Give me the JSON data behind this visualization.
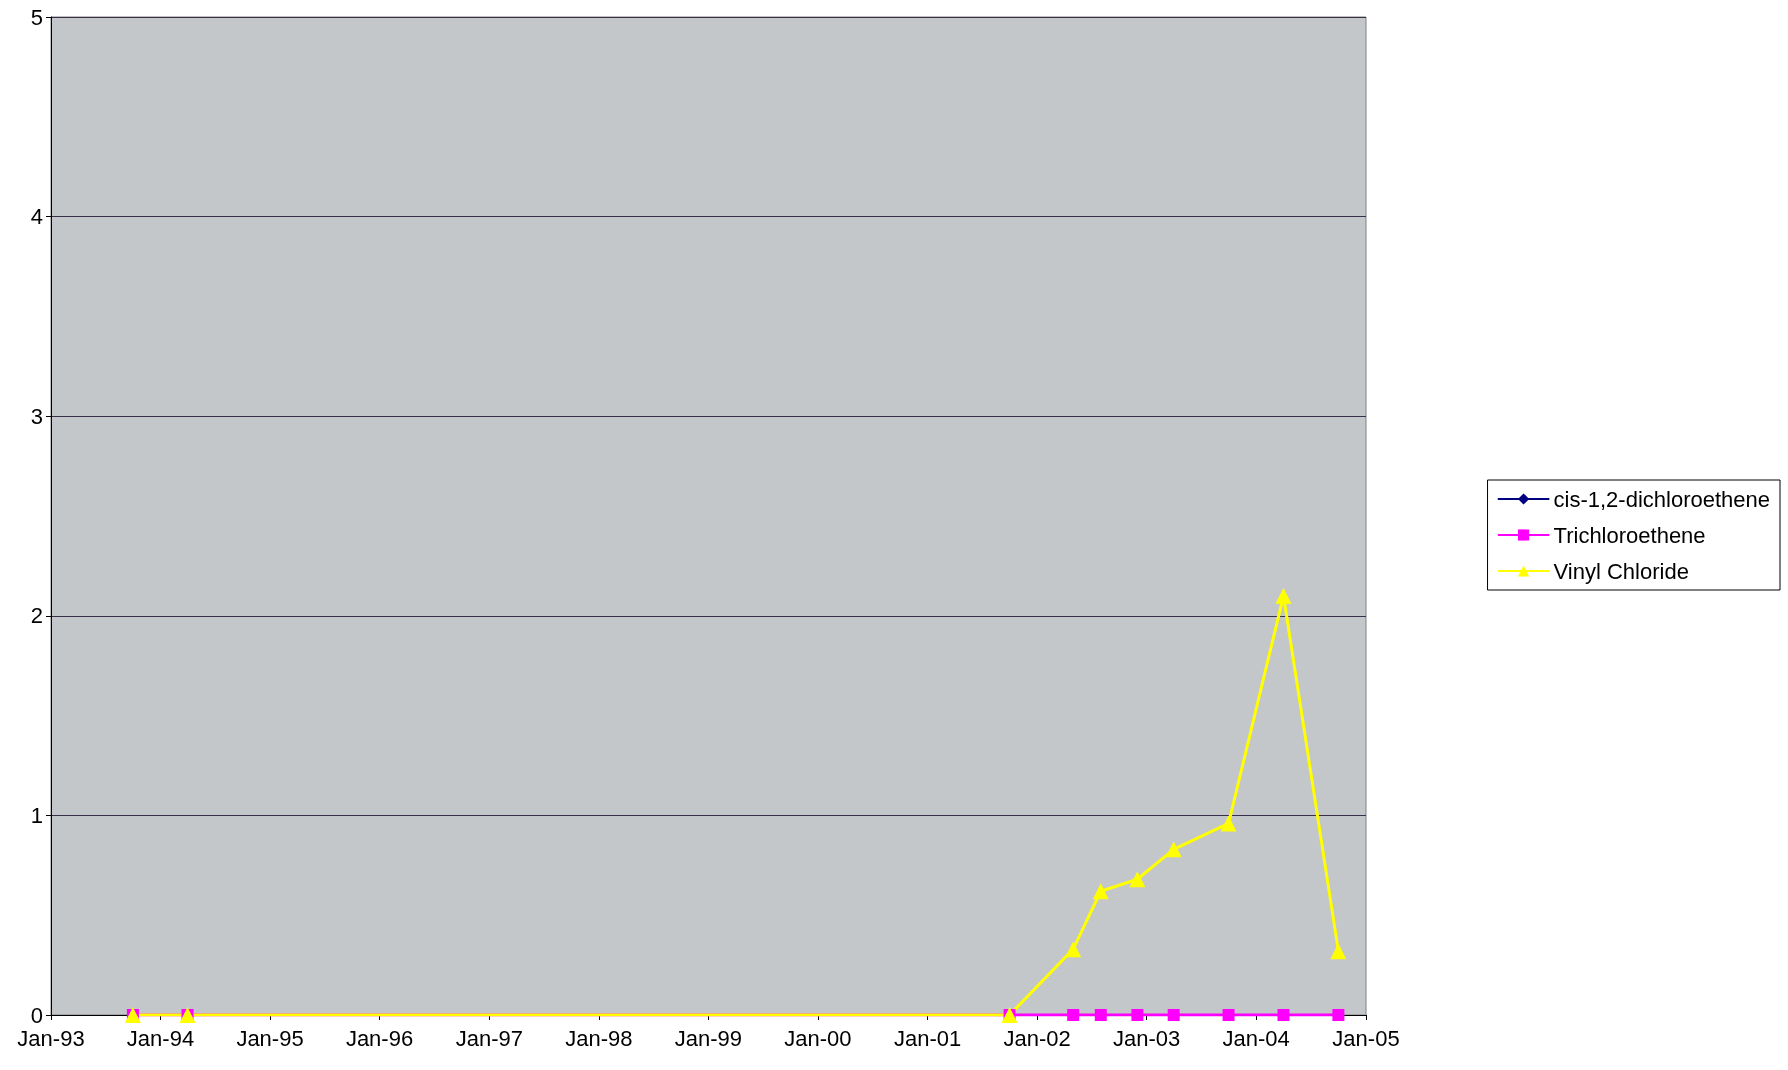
{
  "chart_data": {
    "type": "line",
    "x": [
      "1993-10",
      "1994-04",
      "2001-10",
      "2002-05",
      "2002-08",
      "2002-12",
      "2003-04",
      "2003-10",
      "2004-04",
      "2004-10"
    ],
    "series": [
      {
        "name": "cis-1,2-dichloroethene",
        "color": "#000080",
        "marker": "diamond",
        "values": [
          null,
          null,
          null,
          null,
          null,
          null,
          null,
          null,
          null,
          null
        ]
      },
      {
        "name": "Trichloroethene",
        "color": "#ff00ff",
        "marker": "square",
        "values": [
          0,
          0,
          0,
          0,
          0,
          0,
          0,
          0,
          0,
          0
        ]
      },
      {
        "name": "Vinyl Chloride",
        "color": "#ffff00",
        "marker": "triangle",
        "values": [
          0,
          0,
          0,
          0.33,
          0.62,
          0.68,
          0.83,
          0.96,
          2.1,
          0.32
        ]
      }
    ],
    "xlim": [
      "1993-01",
      "2005-01"
    ],
    "xticks": [
      {
        "value": "1993-01",
        "label": "Jan-93"
      },
      {
        "value": "1994-01",
        "label": "Jan-94"
      },
      {
        "value": "1995-01",
        "label": "Jan-95"
      },
      {
        "value": "1996-01",
        "label": "Jan-96"
      },
      {
        "value": "1997-01",
        "label": "Jan-97"
      },
      {
        "value": "1998-01",
        "label": "Jan-98"
      },
      {
        "value": "1999-01",
        "label": "Jan-99"
      },
      {
        "value": "2000-01",
        "label": "Jan-00"
      },
      {
        "value": "2001-01",
        "label": "Jan-01"
      },
      {
        "value": "2002-01",
        "label": "Jan-02"
      },
      {
        "value": "2003-01",
        "label": "Jan-03"
      },
      {
        "value": "2004-01",
        "label": "Jan-04"
      },
      {
        "value": "2005-01",
        "label": "Jan-05"
      }
    ],
    "ylim": [
      0,
      5
    ],
    "yticks": [
      0,
      1,
      2,
      3,
      4,
      5
    ],
    "grid": "y",
    "legend": "right"
  }
}
